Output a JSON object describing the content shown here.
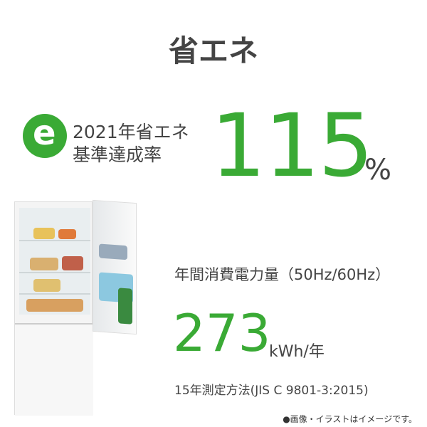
{
  "title": "省エネ",
  "badge": {
    "logo_letter": "e",
    "line1": "2021年省エネ",
    "line2": "基準達成率"
  },
  "achievement": {
    "value": "115",
    "unit": "%"
  },
  "consumption": {
    "label": "年間消費電力量（50Hz/60Hz）",
    "value": "273",
    "unit": "kWh/年"
  },
  "method": "15年測定方法(JIS C 9801-3:2015)",
  "note": "●画像・イラストはイメージです。",
  "colors": {
    "accent": "#3aaa35",
    "text": "#444444"
  }
}
